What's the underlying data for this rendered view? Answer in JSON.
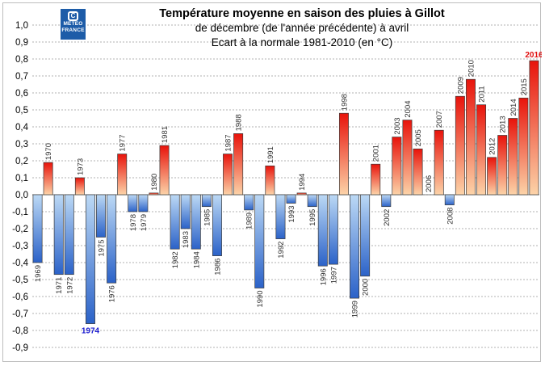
{
  "logo": {
    "line1": "METEO",
    "line2": "FRANCE"
  },
  "chart_data": {
    "type": "bar",
    "title": "Température moyenne en saison des pluies à Gillot",
    "subtitle_lines": [
      "de décembre (de l'année précédente) à avril",
      "Ecart à la normale 1981-2010 (en °C)"
    ],
    "xlabel": "",
    "ylabel": "",
    "ylim": [
      -0.9,
      1.0
    ],
    "yticks": [
      "1,0",
      "0,9",
      "0,8",
      "0,7",
      "0,6",
      "0,5",
      "0,4",
      "0,3",
      "0,2",
      "0,1",
      "0,0",
      "-0,1",
      "-0,2",
      "-0,3",
      "-0,4",
      "-0,5",
      "-0,6",
      "-0,7",
      "-0,8",
      "-0,9"
    ],
    "grid": true,
    "categories": [
      "1969",
      "1970",
      "1971",
      "1972",
      "1973",
      "1974",
      "1975",
      "1976",
      "1977",
      "1978",
      "1979",
      "1980",
      "1981",
      "1982",
      "1983",
      "1984",
      "1985",
      "1986",
      "1987",
      "1988",
      "1989",
      "1990",
      "1991",
      "1992",
      "1993",
      "1994",
      "1995",
      "1996",
      "1997",
      "1998",
      "1999",
      "2000",
      "2001",
      "2002",
      "2003",
      "2004",
      "2005",
      "2006",
      "2007",
      "2008",
      "2009",
      "2010",
      "2011",
      "2012",
      "2013",
      "2014",
      "2015",
      "2016"
    ],
    "values": [
      -0.4,
      0.19,
      -0.47,
      -0.47,
      0.1,
      -0.76,
      -0.25,
      -0.52,
      0.24,
      -0.1,
      -0.1,
      0.01,
      0.29,
      -0.32,
      -0.2,
      -0.32,
      -0.07,
      -0.36,
      0.24,
      0.36,
      -0.09,
      -0.55,
      0.17,
      -0.26,
      -0.05,
      0.01,
      -0.07,
      -0.42,
      -0.41,
      0.48,
      -0.61,
      -0.48,
      0.18,
      -0.07,
      0.34,
      0.44,
      0.27,
      0.0,
      0.38,
      -0.06,
      0.58,
      0.68,
      0.53,
      0.22,
      0.35,
      0.45,
      0.57,
      0.79
    ],
    "highlights": {
      "1974": "#1a1ad0",
      "2016": "#e01010"
    },
    "colors": {
      "positive_top": "#e8130b",
      "positive_bottom": "#fcd3a8",
      "negative_top": "#bcd9f5",
      "negative_bottom": "#2b62c8",
      "grid": "#b0b0b0",
      "label": "#333333"
    }
  }
}
